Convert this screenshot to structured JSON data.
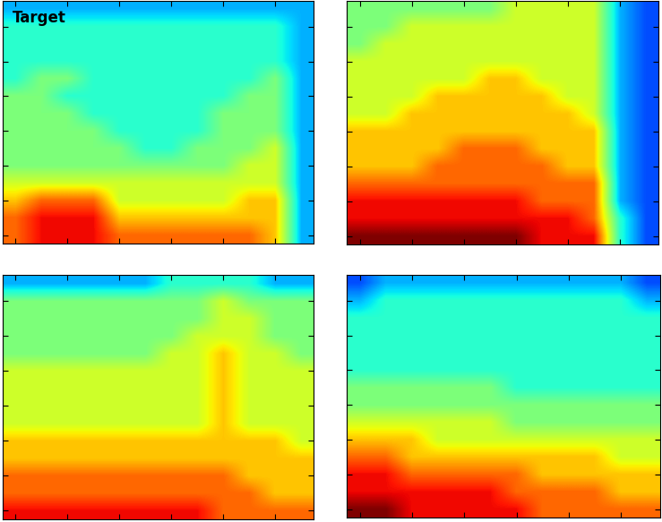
{
  "chart_data": [
    {
      "type": "heatmap",
      "title": "Target",
      "color": "jet",
      "color_range": [
        0,
        10
      ],
      "tick_labels": false,
      "cells": [
        [
          8,
          9,
          9,
          9,
          8,
          8,
          8,
          8,
          8,
          8,
          7,
          3
        ],
        [
          8,
          9,
          9,
          9,
          7,
          7,
          7,
          7,
          7,
          7,
          7,
          3
        ],
        [
          7,
          8,
          8,
          8,
          6,
          6,
          6,
          6,
          6,
          7,
          7,
          3
        ],
        [
          6,
          6,
          6,
          6,
          6,
          6,
          6,
          6,
          6,
          6,
          6,
          3
        ],
        [
          5,
          5,
          5,
          5,
          5,
          5,
          5,
          5,
          5,
          6,
          6,
          3
        ],
        [
          5,
          5,
          5,
          5,
          5,
          4,
          4,
          5,
          5,
          5,
          6,
          3
        ],
        [
          5,
          5,
          5,
          5,
          4,
          4,
          4,
          4,
          5,
          5,
          5,
          3
        ],
        [
          5,
          5,
          5,
          4,
          4,
          4,
          4,
          4,
          5,
          5,
          5,
          3
        ],
        [
          5,
          5,
          4,
          4,
          4,
          4,
          4,
          4,
          4,
          5,
          5,
          3
        ],
        [
          4,
          5,
          5,
          4,
          4,
          4,
          4,
          4,
          4,
          4,
          5,
          3
        ],
        [
          4,
          4,
          4,
          4,
          4,
          4,
          4,
          4,
          4,
          4,
          4,
          3
        ],
        [
          4,
          4,
          4,
          4,
          4,
          4,
          4,
          4,
          4,
          4,
          4,
          3
        ],
        [
          4,
          4,
          4,
          4,
          4,
          4,
          4,
          4,
          4,
          4,
          4,
          3
        ],
        [
          3,
          3,
          3,
          3,
          3,
          3,
          3,
          3,
          3,
          3,
          3,
          3
        ]
      ]
    },
    {
      "type": "heatmap",
      "color": "jet",
      "color_range": [
        0,
        10
      ],
      "tick_labels": false,
      "cells": [
        [
          10,
          10,
          10,
          10,
          10,
          10,
          10,
          9,
          9,
          9,
          4,
          2
        ],
        [
          9,
          9,
          9,
          9,
          9,
          9,
          9,
          9,
          9,
          8,
          4,
          2
        ],
        [
          9,
          9,
          9,
          9,
          9,
          9,
          9,
          8,
          8,
          8,
          3,
          2
        ],
        [
          8,
          8,
          8,
          8,
          8,
          8,
          8,
          8,
          8,
          8,
          3,
          2
        ],
        [
          7,
          7,
          7,
          8,
          8,
          8,
          8,
          8,
          7,
          7,
          3,
          2
        ],
        [
          7,
          7,
          7,
          7,
          8,
          8,
          8,
          7,
          7,
          7,
          3,
          2
        ],
        [
          7,
          7,
          7,
          7,
          7,
          7,
          7,
          7,
          7,
          7,
          3,
          2
        ],
        [
          6,
          6,
          7,
          7,
          7,
          7,
          7,
          7,
          7,
          6,
          3,
          2
        ],
        [
          6,
          6,
          6,
          7,
          7,
          7,
          7,
          7,
          6,
          6,
          3,
          2
        ],
        [
          6,
          6,
          6,
          6,
          6,
          7,
          7,
          6,
          6,
          6,
          3,
          2
        ],
        [
          6,
          6,
          6,
          6,
          6,
          6,
          6,
          6,
          6,
          6,
          3,
          2
        ],
        [
          5,
          6,
          6,
          6,
          6,
          6,
          6,
          6,
          6,
          6,
          3,
          2
        ],
        [
          5,
          5,
          6,
          6,
          6,
          6,
          6,
          6,
          6,
          6,
          3,
          2
        ],
        [
          5,
          5,
          5,
          5,
          5,
          5,
          6,
          6,
          6,
          6,
          3,
          2
        ]
      ]
    },
    {
      "type": "heatmap",
      "color": "jet",
      "color_range": [
        0,
        10
      ],
      "tick_labels": false,
      "cells": [
        [
          9,
          9,
          9,
          9,
          9,
          9,
          9,
          9,
          8,
          8,
          8,
          8
        ],
        [
          8,
          8,
          8,
          8,
          8,
          8,
          8,
          8,
          8,
          8,
          7,
          7
        ],
        [
          8,
          8,
          8,
          8,
          8,
          8,
          8,
          8,
          8,
          7,
          7,
          7
        ],
        [
          7,
          7,
          7,
          7,
          7,
          7,
          7,
          7,
          7,
          7,
          7,
          7
        ],
        [
          7,
          7,
          7,
          7,
          7,
          7,
          7,
          7,
          7,
          7,
          7,
          6
        ],
        [
          6,
          6,
          6,
          6,
          6,
          6,
          6,
          6,
          7,
          6,
          6,
          6
        ],
        [
          6,
          6,
          6,
          6,
          6,
          6,
          6,
          6,
          7,
          6,
          6,
          6
        ],
        [
          6,
          6,
          6,
          6,
          6,
          6,
          6,
          6,
          7,
          6,
          6,
          6
        ],
        [
          6,
          6,
          6,
          6,
          6,
          6,
          6,
          6,
          7,
          6,
          6,
          6
        ],
        [
          5,
          5,
          5,
          5,
          5,
          5,
          6,
          6,
          7,
          6,
          6,
          5
        ],
        [
          5,
          5,
          5,
          5,
          5,
          5,
          5,
          6,
          6,
          6,
          5,
          5
        ],
        [
          5,
          5,
          5,
          5,
          5,
          5,
          5,
          5,
          6,
          6,
          5,
          5
        ],
        [
          5,
          5,
          5,
          5,
          5,
          5,
          5,
          5,
          6,
          5,
          5,
          5
        ],
        [
          3,
          3,
          3,
          3,
          3,
          3,
          4,
          4,
          4,
          4,
          3,
          3
        ]
      ]
    },
    {
      "type": "heatmap",
      "color": "jet",
      "color_range": [
        0,
        10
      ],
      "tick_labels": false,
      "cells": [
        [
          10,
          10,
          9,
          9,
          9,
          9,
          9,
          8,
          8,
          8,
          8,
          8
        ],
        [
          9,
          9,
          9,
          9,
          9,
          9,
          8,
          8,
          8,
          8,
          7,
          7
        ],
        [
          9,
          9,
          8,
          8,
          8,
          8,
          8,
          7,
          7,
          7,
          7,
          7
        ],
        [
          8,
          8,
          7,
          7,
          7,
          7,
          7,
          7,
          7,
          7,
          6,
          6
        ],
        [
          7,
          7,
          7,
          6,
          6,
          6,
          6,
          6,
          6,
          6,
          6,
          6
        ],
        [
          6,
          6,
          6,
          6,
          6,
          6,
          5,
          5,
          5,
          5,
          5,
          5
        ],
        [
          5,
          5,
          5,
          5,
          5,
          5,
          5,
          5,
          5,
          5,
          5,
          5
        ],
        [
          5,
          5,
          5,
          5,
          5,
          5,
          4,
          4,
          4,
          4,
          4,
          4
        ],
        [
          4,
          4,
          4,
          4,
          4,
          4,
          4,
          4,
          4,
          4,
          4,
          4
        ],
        [
          4,
          4,
          4,
          4,
          4,
          4,
          4,
          4,
          4,
          4,
          4,
          4
        ],
        [
          4,
          4,
          4,
          4,
          4,
          4,
          4,
          4,
          4,
          4,
          4,
          4
        ],
        [
          4,
          4,
          4,
          4,
          4,
          4,
          4,
          4,
          4,
          4,
          4,
          4
        ],
        [
          3,
          4,
          4,
          4,
          4,
          4,
          4,
          4,
          4,
          4,
          4,
          3
        ],
        [
          2,
          3,
          3,
          3,
          3,
          3,
          3,
          3,
          3,
          3,
          3,
          2
        ]
      ]
    }
  ]
}
